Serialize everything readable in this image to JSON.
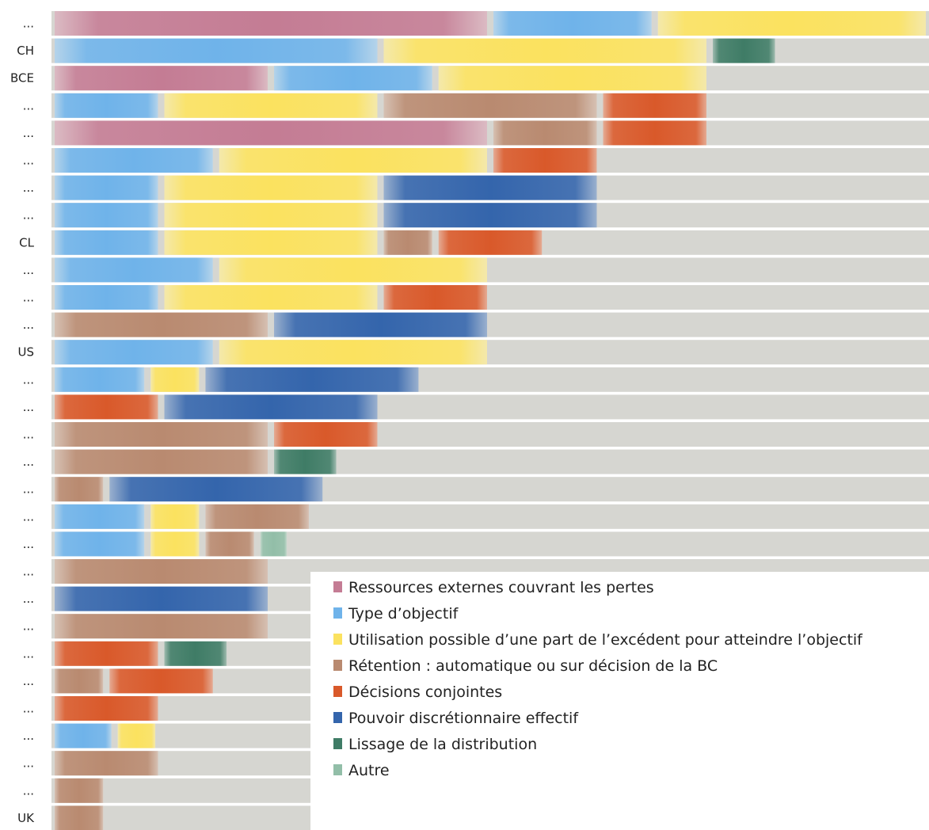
{
  "chart_data": {
    "type": "bar",
    "stacked": true,
    "orientation": "horizontal",
    "title": "",
    "xlabel": "",
    "ylabel": "",
    "grid": false,
    "legend_position": "bottom-right, inside plot",
    "colors": {
      "Ressources externes couvrant les pertes": "#c47c94",
      "Type d’objectif": "#6fb3ea",
      "Utilisation possible d’une part de l’excédent pour atteindre l’objectif": "#fbe25f",
      "Rétention : automatique ou sur décision de la BC": "#b98a70",
      "Décisions conjointes": "#d9592a",
      "Pouvoir discrétionnaire effectif": "#3465ac",
      "Lissage de la distribution": "#3f7c66",
      "Autre": "#92bea8",
      "background": "#d6d6d1"
    },
    "legend": [
      "Ressources externes couvrant les pertes",
      "Type d’objectif",
      "Utilisation possible d’une part de l’excédent pour atteindre l’objectif",
      "Rétention : automatique ou sur décision de la BC",
      "Décisions conjointes",
      "Pouvoir discrétionnaire effectif",
      "Lissage de la distribution",
      "Autre"
    ],
    "max_total": 32,
    "rows": [
      {
        "label": "...",
        "segments": [
          {
            "category": "Ressources externes couvrant les pertes",
            "value": 16
          },
          {
            "category": "Type d’objectif",
            "value": 6
          },
          {
            "category": "Utilisation possible d’une part de l’excédent pour atteindre l’objectif",
            "value": 10
          }
        ]
      },
      {
        "label": "CH",
        "segments": [
          {
            "category": "Type d’objectif",
            "value": 12
          },
          {
            "category": "Utilisation possible d’une part de l’excédent pour atteindre l’objectif",
            "value": 12
          },
          {
            "category": "Lissage de la distribution",
            "value": 2.5
          }
        ]
      },
      {
        "label": "BCE",
        "segments": [
          {
            "category": "Ressources externes couvrant les pertes",
            "value": 8
          },
          {
            "category": "Type d’objectif",
            "value": 6
          },
          {
            "category": "Utilisation possible d’une part de l’excédent pour atteindre l’objectif",
            "value": 10
          }
        ]
      },
      {
        "label": "...",
        "segments": [
          {
            "category": "Type d’objectif",
            "value": 4
          },
          {
            "category": "Utilisation possible d’une part de l’excédent pour atteindre l’objectif",
            "value": 8
          },
          {
            "category": "Rétention : automatique ou sur décision de la BC",
            "value": 8
          },
          {
            "category": "Décisions conjointes",
            "value": 4
          }
        ]
      },
      {
        "label": "...",
        "segments": [
          {
            "category": "Ressources externes couvrant les pertes",
            "value": 16
          },
          {
            "category": "Rétention : automatique ou sur décision de la BC",
            "value": 4
          },
          {
            "category": "Décisions conjointes",
            "value": 4
          }
        ]
      },
      {
        "label": "...",
        "segments": [
          {
            "category": "Type d’objectif",
            "value": 6
          },
          {
            "category": "Utilisation possible d’une part de l’excédent pour atteindre l’objectif",
            "value": 10
          },
          {
            "category": "Décisions conjointes",
            "value": 4
          }
        ]
      },
      {
        "label": "...",
        "segments": [
          {
            "category": "Type d’objectif",
            "value": 4
          },
          {
            "category": "Utilisation possible d’une part de l’excédent pour atteindre l’objectif",
            "value": 8
          },
          {
            "category": "Pouvoir discrétionnaire effectif",
            "value": 8
          }
        ]
      },
      {
        "label": "...",
        "segments": [
          {
            "category": "Type d’objectif",
            "value": 4
          },
          {
            "category": "Utilisation possible d’une part de l’excédent pour atteindre l’objectif",
            "value": 8
          },
          {
            "category": "Pouvoir discrétionnaire effectif",
            "value": 8
          }
        ]
      },
      {
        "label": "CL",
        "segments": [
          {
            "category": "Type d’objectif",
            "value": 4
          },
          {
            "category": "Utilisation possible d’une part de l’excédent pour atteindre l’objectif",
            "value": 8
          },
          {
            "category": "Rétention : automatique ou sur décision de la BC",
            "value": 2
          },
          {
            "category": "Décisions conjointes",
            "value": 4
          }
        ]
      },
      {
        "label": "...",
        "segments": [
          {
            "category": "Type d’objectif",
            "value": 6
          },
          {
            "category": "Utilisation possible d’une part de l’excédent pour atteindre l’objectif",
            "value": 10
          }
        ]
      },
      {
        "label": "...",
        "segments": [
          {
            "category": "Type d’objectif",
            "value": 4
          },
          {
            "category": "Utilisation possible d’une part de l’excédent pour atteindre l’objectif",
            "value": 8
          },
          {
            "category": "Décisions conjointes",
            "value": 4
          }
        ]
      },
      {
        "label": "...",
        "segments": [
          {
            "category": "Rétention : automatique ou sur décision de la BC",
            "value": 8
          },
          {
            "category": "Pouvoir discrétionnaire effectif",
            "value": 8
          }
        ]
      },
      {
        "label": "US",
        "segments": [
          {
            "category": "Type d’objectif",
            "value": 6
          },
          {
            "category": "Utilisation possible d’une part de l’excédent pour atteindre l’objectif",
            "value": 10
          }
        ]
      },
      {
        "label": "...",
        "segments": [
          {
            "category": "Type d’objectif",
            "value": 3.5
          },
          {
            "category": "Utilisation possible d’une part de l’excédent pour atteindre l’objectif",
            "value": 2
          },
          {
            "category": "Pouvoir discrétionnaire effectif",
            "value": 8
          }
        ]
      },
      {
        "label": "...",
        "segments": [
          {
            "category": "Décisions conjointes",
            "value": 4
          },
          {
            "category": "Pouvoir discrétionnaire effectif",
            "value": 8
          }
        ]
      },
      {
        "label": "...",
        "segments": [
          {
            "category": "Rétention : automatique ou sur décision de la BC",
            "value": 8
          },
          {
            "category": "Décisions conjointes",
            "value": 4
          }
        ]
      },
      {
        "label": "...",
        "segments": [
          {
            "category": "Rétention : automatique ou sur décision de la BC",
            "value": 8
          },
          {
            "category": "Lissage de la distribution",
            "value": 2.5
          }
        ]
      },
      {
        "label": "...",
        "segments": [
          {
            "category": "Rétention : automatique ou sur décision de la BC",
            "value": 2
          },
          {
            "category": "Pouvoir discrétionnaire effectif",
            "value": 8
          }
        ]
      },
      {
        "label": "...",
        "segments": [
          {
            "category": "Type d’objectif",
            "value": 3.5
          },
          {
            "category": "Utilisation possible d’une part de l’excédent pour atteindre l’objectif",
            "value": 2
          },
          {
            "category": "Rétention : automatique ou sur décision de la BC",
            "value": 4
          }
        ]
      },
      {
        "label": "...",
        "segments": [
          {
            "category": "Type d’objectif",
            "value": 3.5
          },
          {
            "category": "Utilisation possible d’une part de l’excédent pour atteindre l’objectif",
            "value": 2
          },
          {
            "category": "Rétention : automatique ou sur décision de la BC",
            "value": 2
          },
          {
            "category": "Autre",
            "value": 1.2
          }
        ]
      },
      {
        "label": "...",
        "segments": [
          {
            "category": "Rétention : automatique ou sur décision de la BC",
            "value": 8
          }
        ]
      },
      {
        "label": "...",
        "segments": [
          {
            "category": "Pouvoir discrétionnaire effectif",
            "value": 8
          }
        ]
      },
      {
        "label": "...",
        "segments": [
          {
            "category": "Rétention : automatique ou sur décision de la BC",
            "value": 8
          }
        ]
      },
      {
        "label": "...",
        "segments": [
          {
            "category": "Décisions conjointes",
            "value": 4
          },
          {
            "category": "Lissage de la distribution",
            "value": 2.5
          }
        ]
      },
      {
        "label": "...",
        "segments": [
          {
            "category": "Rétention : automatique ou sur décision de la BC",
            "value": 2
          },
          {
            "category": "Décisions conjointes",
            "value": 4
          }
        ]
      },
      {
        "label": "...",
        "segments": [
          {
            "category": "Décisions conjointes",
            "value": 4
          }
        ]
      },
      {
        "label": "...",
        "segments": [
          {
            "category": "Type d’objectif",
            "value": 2.3
          },
          {
            "category": "Utilisation possible d’une part de l’excédent pour atteindre l’objectif",
            "value": 1.6
          }
        ]
      },
      {
        "label": "...",
        "segments": [
          {
            "category": "Rétention : automatique ou sur décision de la BC",
            "value": 4
          }
        ]
      },
      {
        "label": "...",
        "segments": [
          {
            "category": "Rétention : automatique ou sur décision de la BC",
            "value": 2
          }
        ]
      },
      {
        "label": "UK",
        "segments": [
          {
            "category": "Rétention : automatique ou sur décision de la BC",
            "value": 2
          }
        ]
      }
    ]
  }
}
